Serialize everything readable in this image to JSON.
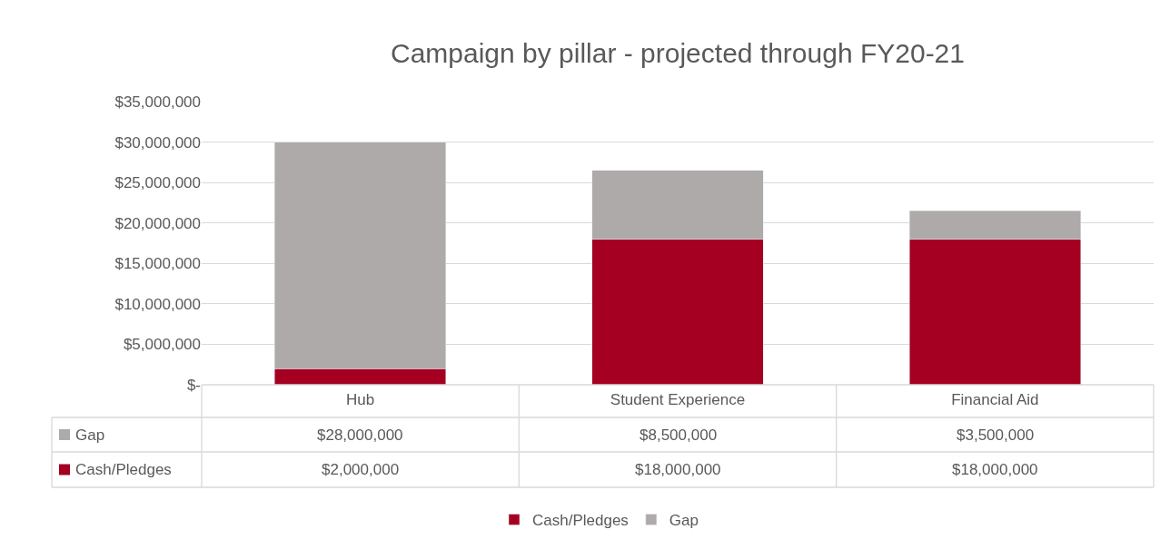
{
  "chart_data": {
    "type": "bar",
    "title": "Campaign by pillar - projected through FY20-21",
    "categories": [
      "Hub",
      "Student Experience",
      "Financial Aid"
    ],
    "stacked": true,
    "series": [
      {
        "name": "Cash/Pledges",
        "color": "#a50021",
        "values": [
          2000000,
          18000000,
          18000000
        ],
        "value_labels": [
          "$2,000,000",
          "$18,000,000",
          "$18,000,000"
        ]
      },
      {
        "name": "Gap",
        "color": "#aeaaaa",
        "values": [
          28000000,
          8500000,
          3500000
        ],
        "value_labels": [
          "$28,000,000",
          "$8,500,000",
          "$3,500,000"
        ]
      }
    ],
    "ylim": [
      0,
      35000000
    ],
    "yticks": [
      {
        "value": 0,
        "label": "$-"
      },
      {
        "value": 5000000,
        "label": "$5,000,000"
      },
      {
        "value": 10000000,
        "label": "$10,000,000"
      },
      {
        "value": 15000000,
        "label": "$15,000,000"
      },
      {
        "value": 20000000,
        "label": "$20,000,000"
      },
      {
        "value": 25000000,
        "label": "$25,000,000"
      },
      {
        "value": 30000000,
        "label": "$30,000,000"
      },
      {
        "value": 35000000,
        "label": "$35,000,000"
      }
    ],
    "grid": "y",
    "legend": "bottom"
  }
}
